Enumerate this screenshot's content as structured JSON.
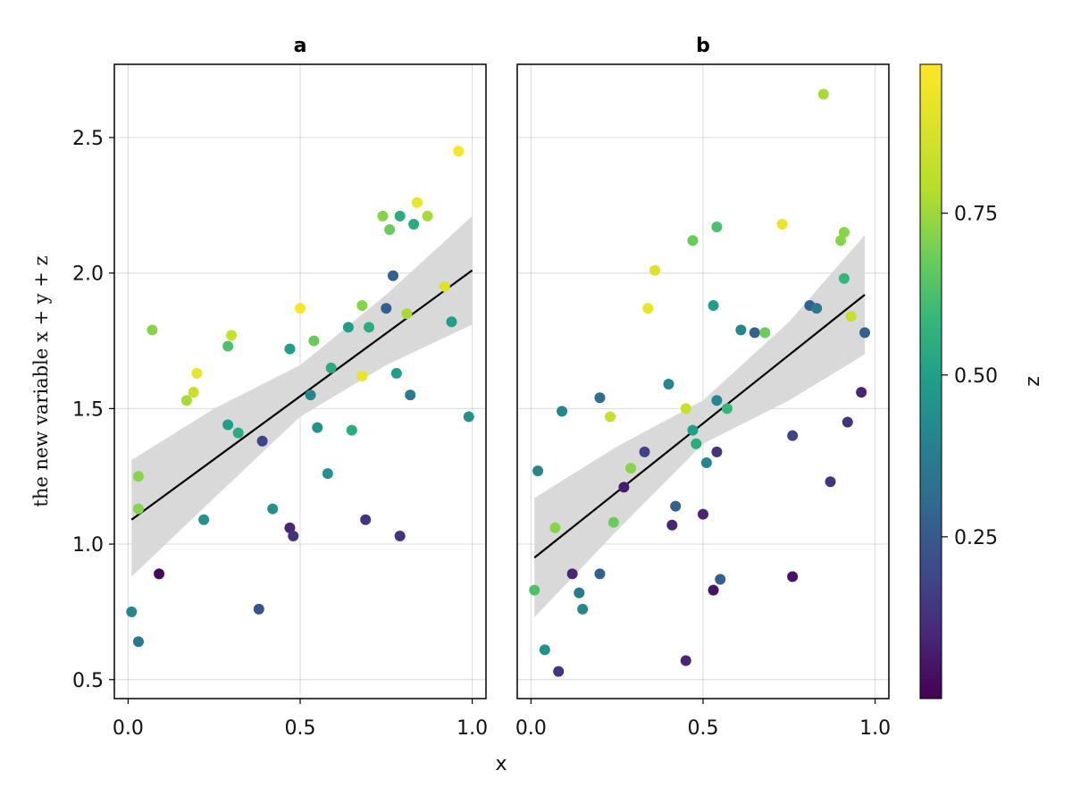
{
  "chart_data": {
    "type": "scatter",
    "xlabel": "x",
    "ylabel": "the new variable x + y + z",
    "xlim": [
      -0.04,
      1.04
    ],
    "ylim": [
      0.43,
      2.77
    ],
    "xticks": [
      "0.0",
      "0.5",
      "1.0"
    ],
    "yticks": [
      "0.5",
      "1.0",
      "1.5",
      "2.0",
      "2.5"
    ],
    "grid": true,
    "colorbar": {
      "label": "z",
      "range": [
        0.0,
        0.98
      ],
      "ticks": [
        "0.25",
        "0.50",
        "0.75"
      ],
      "colormap": "viridis"
    },
    "panels": [
      {
        "title": "a",
        "fit": {
          "x0": 0.01,
          "y0": 1.09,
          "x1": 1.0,
          "y1": 2.01
        },
        "band": [
          [
            0.01,
            0.88,
            1.31
          ],
          [
            0.25,
            1.17,
            1.5
          ],
          [
            0.5,
            1.47,
            1.66
          ],
          [
            0.75,
            1.66,
            1.92
          ],
          [
            1.0,
            1.81,
            2.21
          ]
        ],
        "points": [
          {
            "x": 0.01,
            "y": 0.75,
            "z": 0.45
          },
          {
            "x": 0.03,
            "y": 0.64,
            "z": 0.4
          },
          {
            "x": 0.03,
            "y": 1.25,
            "z": 0.8
          },
          {
            "x": 0.03,
            "y": 1.13,
            "z": 0.8
          },
          {
            "x": 0.07,
            "y": 1.79,
            "z": 0.8
          },
          {
            "x": 0.09,
            "y": 0.89,
            "z": 0.02
          },
          {
            "x": 0.17,
            "y": 1.53,
            "z": 0.85
          },
          {
            "x": 0.19,
            "y": 1.56,
            "z": 0.9
          },
          {
            "x": 0.2,
            "y": 1.63,
            "z": 0.95
          },
          {
            "x": 0.22,
            "y": 1.09,
            "z": 0.5
          },
          {
            "x": 0.29,
            "y": 1.44,
            "z": 0.55
          },
          {
            "x": 0.29,
            "y": 1.73,
            "z": 0.7
          },
          {
            "x": 0.3,
            "y": 1.77,
            "z": 0.9
          },
          {
            "x": 0.32,
            "y": 1.41,
            "z": 0.6
          },
          {
            "x": 0.38,
            "y": 0.76,
            "z": 0.25
          },
          {
            "x": 0.39,
            "y": 1.38,
            "z": 0.2
          },
          {
            "x": 0.42,
            "y": 1.13,
            "z": 0.5
          },
          {
            "x": 0.47,
            "y": 1.06,
            "z": 0.1
          },
          {
            "x": 0.47,
            "y": 1.72,
            "z": 0.55
          },
          {
            "x": 0.48,
            "y": 1.03,
            "z": 0.15
          },
          {
            "x": 0.5,
            "y": 1.87,
            "z": 0.97
          },
          {
            "x": 0.53,
            "y": 1.55,
            "z": 0.45
          },
          {
            "x": 0.54,
            "y": 1.75,
            "z": 0.75
          },
          {
            "x": 0.55,
            "y": 1.43,
            "z": 0.5
          },
          {
            "x": 0.58,
            "y": 1.26,
            "z": 0.5
          },
          {
            "x": 0.59,
            "y": 1.65,
            "z": 0.6
          },
          {
            "x": 0.64,
            "y": 1.8,
            "z": 0.55
          },
          {
            "x": 0.65,
            "y": 1.42,
            "z": 0.6
          },
          {
            "x": 0.68,
            "y": 1.88,
            "z": 0.8
          },
          {
            "x": 0.68,
            "y": 1.62,
            "z": 0.95
          },
          {
            "x": 0.69,
            "y": 1.09,
            "z": 0.15
          },
          {
            "x": 0.7,
            "y": 1.8,
            "z": 0.6
          },
          {
            "x": 0.74,
            "y": 2.21,
            "z": 0.8
          },
          {
            "x": 0.75,
            "y": 1.87,
            "z": 0.3
          },
          {
            "x": 0.76,
            "y": 2.16,
            "z": 0.75
          },
          {
            "x": 0.77,
            "y": 1.99,
            "z": 0.3
          },
          {
            "x": 0.78,
            "y": 1.63,
            "z": 0.55
          },
          {
            "x": 0.79,
            "y": 2.21,
            "z": 0.6
          },
          {
            "x": 0.79,
            "y": 1.03,
            "z": 0.15
          },
          {
            "x": 0.81,
            "y": 1.85,
            "z": 0.85
          },
          {
            "x": 0.82,
            "y": 1.55,
            "z": 0.4
          },
          {
            "x": 0.83,
            "y": 2.18,
            "z": 0.6
          },
          {
            "x": 0.84,
            "y": 2.26,
            "z": 0.95
          },
          {
            "x": 0.87,
            "y": 2.21,
            "z": 0.85
          },
          {
            "x": 0.92,
            "y": 1.95,
            "z": 0.93
          },
          {
            "x": 0.94,
            "y": 1.82,
            "z": 0.55
          },
          {
            "x": 0.96,
            "y": 2.45,
            "z": 0.97
          },
          {
            "x": 0.99,
            "y": 1.47,
            "z": 0.5
          }
        ]
      },
      {
        "title": "b",
        "fit": {
          "x0": 0.01,
          "y0": 0.95,
          "x1": 0.97,
          "y1": 1.92
        },
        "band": [
          [
            0.01,
            0.73,
            1.17
          ],
          [
            0.25,
            1.05,
            1.36
          ],
          [
            0.5,
            1.37,
            1.53
          ],
          [
            0.75,
            1.53,
            1.82
          ],
          [
            0.97,
            1.7,
            2.14
          ]
        ],
        "points": [
          {
            "x": 0.01,
            "y": 0.83,
            "z": 0.7
          },
          {
            "x": 0.02,
            "y": 1.27,
            "z": 0.45
          },
          {
            "x": 0.04,
            "y": 0.61,
            "z": 0.5
          },
          {
            "x": 0.07,
            "y": 1.06,
            "z": 0.8
          },
          {
            "x": 0.08,
            "y": 0.53,
            "z": 0.15
          },
          {
            "x": 0.09,
            "y": 1.49,
            "z": 0.45
          },
          {
            "x": 0.12,
            "y": 0.89,
            "z": 0.1
          },
          {
            "x": 0.14,
            "y": 0.82,
            "z": 0.4
          },
          {
            "x": 0.15,
            "y": 0.76,
            "z": 0.45
          },
          {
            "x": 0.2,
            "y": 0.89,
            "z": 0.3
          },
          {
            "x": 0.2,
            "y": 1.54,
            "z": 0.35
          },
          {
            "x": 0.23,
            "y": 1.47,
            "z": 0.9
          },
          {
            "x": 0.24,
            "y": 1.08,
            "z": 0.75
          },
          {
            "x": 0.27,
            "y": 1.21,
            "z": 0.08
          },
          {
            "x": 0.29,
            "y": 1.28,
            "z": 0.8
          },
          {
            "x": 0.33,
            "y": 1.34,
            "z": 0.2
          },
          {
            "x": 0.34,
            "y": 1.87,
            "z": 0.95
          },
          {
            "x": 0.36,
            "y": 2.01,
            "z": 0.93
          },
          {
            "x": 0.4,
            "y": 1.59,
            "z": 0.45
          },
          {
            "x": 0.41,
            "y": 1.07,
            "z": 0.1
          },
          {
            "x": 0.42,
            "y": 1.14,
            "z": 0.3
          },
          {
            "x": 0.45,
            "y": 0.57,
            "z": 0.1
          },
          {
            "x": 0.45,
            "y": 1.5,
            "z": 0.9
          },
          {
            "x": 0.47,
            "y": 1.42,
            "z": 0.55
          },
          {
            "x": 0.47,
            "y": 2.12,
            "z": 0.75
          },
          {
            "x": 0.48,
            "y": 1.37,
            "z": 0.6
          },
          {
            "x": 0.5,
            "y": 1.11,
            "z": 0.1
          },
          {
            "x": 0.51,
            "y": 1.3,
            "z": 0.45
          },
          {
            "x": 0.53,
            "y": 0.83,
            "z": 0.05
          },
          {
            "x": 0.53,
            "y": 1.88,
            "z": 0.55
          },
          {
            "x": 0.54,
            "y": 1.34,
            "z": 0.15
          },
          {
            "x": 0.54,
            "y": 1.53,
            "z": 0.45
          },
          {
            "x": 0.54,
            "y": 2.17,
            "z": 0.7
          },
          {
            "x": 0.55,
            "y": 0.87,
            "z": 0.3
          },
          {
            "x": 0.57,
            "y": 1.5,
            "z": 0.65
          },
          {
            "x": 0.61,
            "y": 1.79,
            "z": 0.45
          },
          {
            "x": 0.65,
            "y": 1.78,
            "z": 0.3
          },
          {
            "x": 0.68,
            "y": 1.78,
            "z": 0.75
          },
          {
            "x": 0.73,
            "y": 2.18,
            "z": 0.95
          },
          {
            "x": 0.76,
            "y": 0.88,
            "z": 0.05
          },
          {
            "x": 0.76,
            "y": 1.4,
            "z": 0.2
          },
          {
            "x": 0.81,
            "y": 1.88,
            "z": 0.3
          },
          {
            "x": 0.83,
            "y": 1.87,
            "z": 0.4
          },
          {
            "x": 0.85,
            "y": 2.66,
            "z": 0.85
          },
          {
            "x": 0.87,
            "y": 1.23,
            "z": 0.15
          },
          {
            "x": 0.9,
            "y": 2.12,
            "z": 0.8
          },
          {
            "x": 0.91,
            "y": 2.15,
            "z": 0.8
          },
          {
            "x": 0.91,
            "y": 1.98,
            "z": 0.65
          },
          {
            "x": 0.92,
            "y": 1.45,
            "z": 0.15
          },
          {
            "x": 0.93,
            "y": 1.84,
            "z": 0.9
          },
          {
            "x": 0.96,
            "y": 1.56,
            "z": 0.1
          },
          {
            "x": 0.97,
            "y": 1.78,
            "z": 0.3
          }
        ]
      }
    ]
  }
}
